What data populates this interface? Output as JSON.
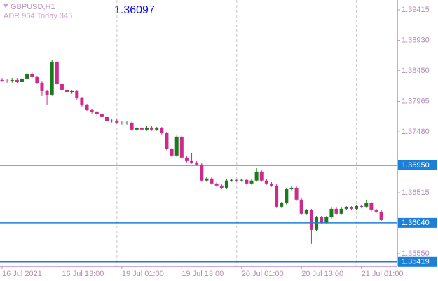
{
  "chart_data": {
    "type": "candlestick",
    "title": "GBPUSD,H1",
    "subtitle": "ADR 964   Today 345",
    "annotation": "1.36097",
    "categories": [
      "16 Jul 2021",
      null,
      null,
      null,
      null,
      null,
      null,
      null,
      null,
      null,
      null,
      null,
      "16 Jul 13:00",
      null,
      null,
      null,
      null,
      null,
      null,
      null,
      null,
      null,
      null,
      null,
      "19 Jul 01:00",
      null,
      null,
      null,
      null,
      null,
      null,
      null,
      null,
      null,
      null,
      null,
      "19 Jul 13:00",
      null,
      null,
      null,
      null,
      null,
      null,
      null,
      null,
      null,
      null,
      null,
      "20 Jul 01:00",
      null,
      null,
      null,
      null,
      null,
      null,
      null,
      null,
      null,
      null,
      null,
      "20 Jul 13:00",
      null,
      null,
      null,
      null,
      null,
      null,
      null,
      null,
      null,
      null,
      null,
      "21 Jul 01:00",
      null,
      null,
      null,
      null
    ],
    "open": [
      1.38305,
      1.38294,
      1.38282,
      1.38305,
      1.38271,
      1.38316,
      1.38405,
      1.38349,
      1.3826,
      1.38127,
      1.38072,
      1.38593,
      1.38238,
      1.38149,
      1.38105,
      1.38127,
      1.38016,
      1.37905,
      1.37827,
      1.37794,
      1.37761,
      1.37716,
      1.3765,
      1.37661,
      1.37628,
      1.37616,
      1.37628,
      1.37517,
      1.37539,
      1.37517,
      1.3755,
      1.37517,
      1.37539,
      1.3746,
      1.37206,
      1.37106,
      1.37406,
      1.37073,
      1.37017,
      1.36995,
      1.36962,
      1.36708,
      1.36741,
      1.36662,
      1.36629,
      1.36595,
      1.36708,
      1.36719,
      1.36708,
      1.36719,
      1.36662,
      1.36708,
      1.36851,
      1.36708,
      1.36662,
      1.36629,
      1.36296,
      1.36351,
      1.36573,
      1.36595,
      1.36407,
      1.36185,
      1.3624,
      1.35929,
      1.36129,
      1.3604,
      1.36129,
      1.36262,
      1.36185,
      1.36262,
      1.36284,
      1.36262,
      1.36306,
      1.36296,
      1.36351,
      1.3624,
      1.36218
    ],
    "high": [
      1.38325,
      1.38314,
      1.38325,
      1.38325,
      1.38336,
      1.38425,
      1.38425,
      1.38369,
      1.3828,
      1.38147,
      1.38626,
      1.38613,
      1.38258,
      1.38169,
      1.38147,
      1.38147,
      1.38036,
      1.37925,
      1.37847,
      1.37814,
      1.37781,
      1.37736,
      1.37681,
      1.37681,
      1.37648,
      1.37648,
      1.37648,
      1.37559,
      1.37559,
      1.3757,
      1.3757,
      1.37559,
      1.37559,
      1.3748,
      1.37226,
      1.37426,
      1.37426,
      1.37093,
      1.3715,
      1.37015,
      1.36982,
      1.36761,
      1.36761,
      1.36682,
      1.36649,
      1.36728,
      1.36739,
      1.36739,
      1.36739,
      1.36739,
      1.36728,
      1.36906,
      1.36871,
      1.36728,
      1.36682,
      1.36649,
      1.36371,
      1.36593,
      1.36615,
      1.36615,
      1.36427,
      1.3626,
      1.3626,
      1.36149,
      1.36149,
      1.36149,
      1.36282,
      1.36282,
      1.36282,
      1.36304,
      1.36304,
      1.36326,
      1.36326,
      1.364,
      1.36371,
      1.3626,
      1.36238
    ],
    "low": [
      1.38274,
      1.38262,
      1.38262,
      1.38251,
      1.38251,
      1.38296,
      1.38329,
      1.3824,
      1.3805,
      1.37905,
      1.38052,
      1.38218,
      1.38072,
      1.38085,
      1.38085,
      1.37996,
      1.37885,
      1.37807,
      1.37774,
      1.37741,
      1.37696,
      1.3763,
      1.3763,
      1.37608,
      1.37596,
      1.37596,
      1.37497,
      1.37497,
      1.37497,
      1.37497,
      1.37497,
      1.37497,
      1.3744,
      1.37186,
      1.37086,
      1.37086,
      1.37053,
      1.36997,
      1.36975,
      1.36942,
      1.36688,
      1.36688,
      1.36642,
      1.36609,
      1.36575,
      1.36575,
      1.36688,
      1.36688,
      1.36688,
      1.36642,
      1.36642,
      1.36688,
      1.36688,
      1.36642,
      1.36609,
      1.36276,
      1.36276,
      1.36331,
      1.36553,
      1.36387,
      1.36165,
      1.36165,
      1.35707,
      1.35909,
      1.3602,
      1.3602,
      1.36109,
      1.36165,
      1.36165,
      1.36242,
      1.36242,
      1.36242,
      1.36276,
      1.36276,
      1.3622,
      1.36198,
      1.36064
    ],
    "close": [
      1.38294,
      1.38282,
      1.38305,
      1.38271,
      1.38316,
      1.38405,
      1.38349,
      1.3826,
      1.38127,
      1.38072,
      1.38593,
      1.38238,
      1.38149,
      1.38105,
      1.38127,
      1.38016,
      1.37905,
      1.37827,
      1.37794,
      1.37761,
      1.37716,
      1.3765,
      1.37661,
      1.37628,
      1.37616,
      1.37628,
      1.37517,
      1.37539,
      1.37517,
      1.3755,
      1.37517,
      1.37539,
      1.3746,
      1.37206,
      1.37106,
      1.37406,
      1.37073,
      1.37017,
      1.36995,
      1.36962,
      1.36708,
      1.36741,
      1.36662,
      1.36629,
      1.36595,
      1.36708,
      1.36719,
      1.36708,
      1.36719,
      1.36662,
      1.36708,
      1.36851,
      1.36708,
      1.36662,
      1.36629,
      1.36296,
      1.36351,
      1.36573,
      1.36595,
      1.36407,
      1.36185,
      1.3624,
      1.35929,
      1.36129,
      1.3604,
      1.36129,
      1.36262,
      1.36185,
      1.36262,
      1.36284,
      1.36262,
      1.36306,
      1.36296,
      1.36351,
      1.3624,
      1.36218,
      1.36084
    ],
    "up_color": "#1b7a1b",
    "down_color": "#cc2a8e",
    "ylim": [
      1.3535,
      1.3957
    ],
    "yticks": [
      1.39415,
      {
        "value": 1.3893,
        "label": "1.38930"
      },
      {
        "value": 1.3845,
        "label": "1.38450"
      },
      1.37965,
      {
        "value": 1.3748,
        "label": "1.37480"
      },
      1.36515,
      {
        "value": 1.3555,
        "label": "1.35550"
      }
    ],
    "levels": [
      {
        "value": 1.3695,
        "label": "1.36950"
      },
      {
        "value": 1.3604,
        "label": "1.36040"
      },
      {
        "value": 1.35419,
        "label": "1.35419"
      }
    ],
    "level_color": "#1e7fd8"
  }
}
